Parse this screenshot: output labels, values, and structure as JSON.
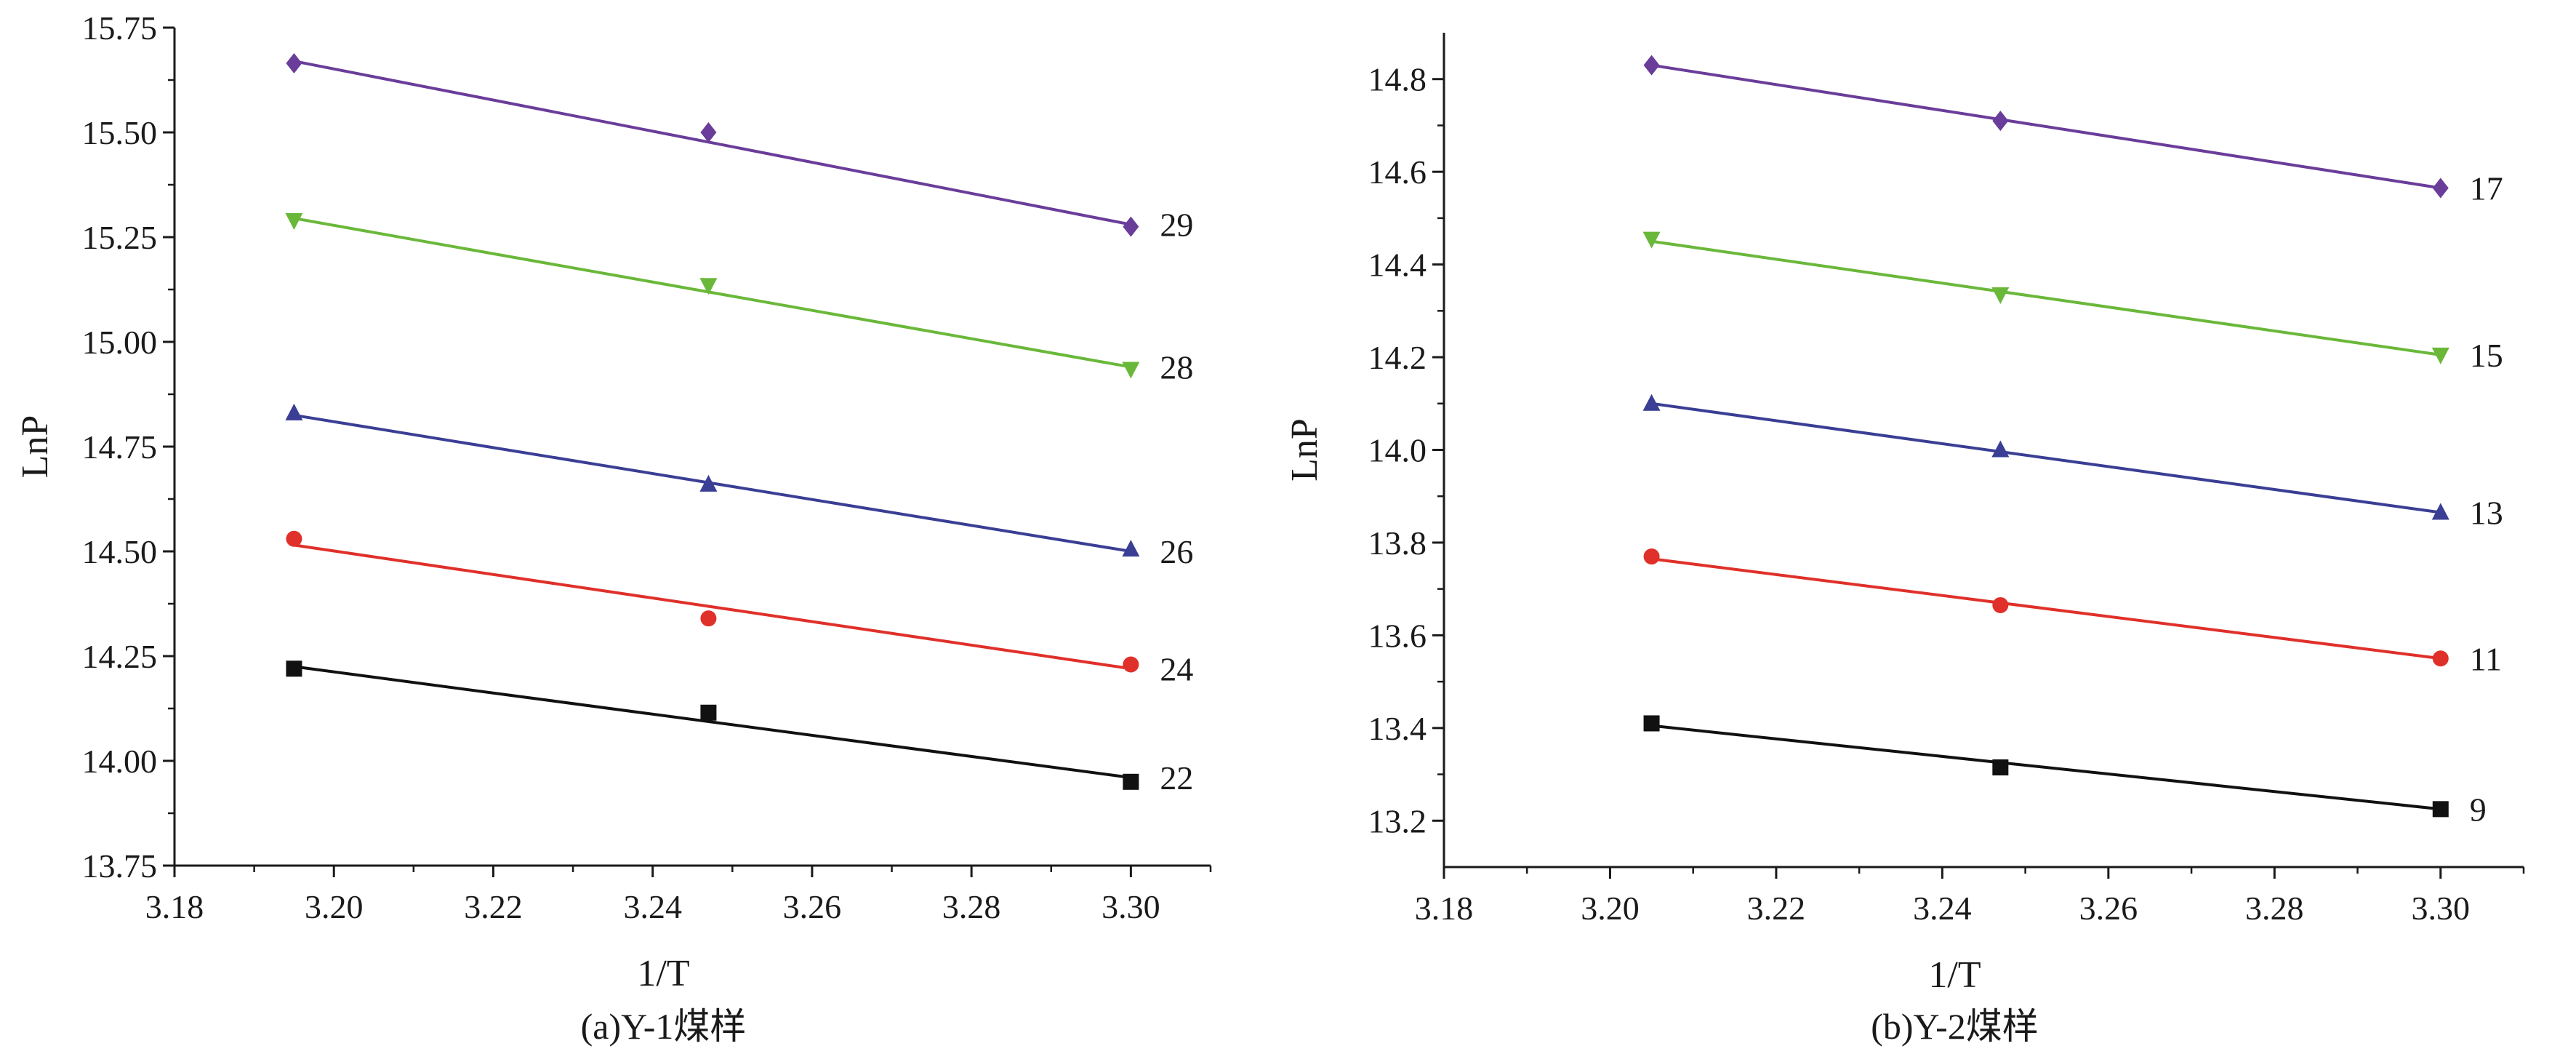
{
  "chart_data": [
    {
      "type": "scatter",
      "caption": "(a)Y-1煤样",
      "xlabel": "1/T",
      "ylabel": "LnP",
      "xlim": [
        3.18,
        3.31
      ],
      "ylim": [
        13.75,
        15.75
      ],
      "xticks": [
        "3.18",
        "3.20",
        "3.22",
        "3.24",
        "3.26",
        "3.28",
        "3.30"
      ],
      "yticks": [
        "13.75",
        "14.00",
        "14.25",
        "14.50",
        "14.75",
        "15.00",
        "15.25",
        "15.50",
        "15.75"
      ],
      "fit_lines": true,
      "series": [
        {
          "name": "22",
          "color": "#111111",
          "marker": "square",
          "x": [
            3.195,
            3.247,
            3.3
          ],
          "y": [
            14.22,
            14.115,
            13.95
          ],
          "fit": [
            [
              3.195,
              14.225
            ],
            [
              3.3,
              13.96
            ]
          ]
        },
        {
          "name": "24",
          "color": "#e0302a",
          "marker": "circle",
          "x": [
            3.195,
            3.247,
            3.3
          ],
          "y": [
            14.53,
            14.34,
            14.23
          ],
          "fit": [
            [
              3.195,
              14.515
            ],
            [
              3.3,
              14.22
            ]
          ]
        },
        {
          "name": "26",
          "color": "#3a3e94",
          "marker": "triangle-up",
          "x": [
            3.195,
            3.247,
            3.3
          ],
          "y": [
            14.83,
            14.66,
            14.505
          ],
          "fit": [
            [
              3.195,
              14.825
            ],
            [
              3.3,
              14.5
            ]
          ]
        },
        {
          "name": "28",
          "color": "#6ab83a",
          "marker": "triangle-down",
          "x": [
            3.195,
            3.247,
            3.3
          ],
          "y": [
            15.29,
            15.135,
            14.935
          ],
          "fit": [
            [
              3.195,
              15.295
            ],
            [
              3.3,
              14.94
            ]
          ]
        },
        {
          "name": "29",
          "color": "#6a3d9a",
          "marker": "diamond",
          "x": [
            3.195,
            3.247,
            3.3
          ],
          "y": [
            15.665,
            15.5,
            15.275
          ],
          "fit": [
            [
              3.195,
              15.67
            ],
            [
              3.3,
              15.28
            ]
          ]
        }
      ]
    },
    {
      "type": "scatter",
      "caption": "(b)Y-2煤样",
      "xlabel": "1/T",
      "ylabel": "LnP",
      "xlim": [
        3.18,
        3.31
      ],
      "ylim": [
        13.1,
        14.9
      ],
      "xticks": [
        "3.18",
        "3.20",
        "3.22",
        "3.24",
        "3.26",
        "3.28",
        "3.30"
      ],
      "yticks": [
        "13.2",
        "13.4",
        "13.6",
        "13.8",
        "14.0",
        "14.2",
        "14.4",
        "14.6",
        "14.8"
      ],
      "fit_lines": true,
      "series": [
        {
          "name": "9",
          "color": "#111111",
          "marker": "square",
          "x": [
            3.205,
            3.247,
            3.3
          ],
          "y": [
            13.41,
            13.315,
            13.225
          ],
          "fit": [
            [
              3.205,
              13.405
            ],
            [
              3.3,
              13.225
            ]
          ]
        },
        {
          "name": "11",
          "color": "#e0302a",
          "marker": "circle",
          "x": [
            3.205,
            3.247,
            3.3
          ],
          "y": [
            13.77,
            13.665,
            13.55
          ],
          "fit": [
            [
              3.205,
              13.765
            ],
            [
              3.3,
              13.55
            ]
          ]
        },
        {
          "name": "13",
          "color": "#3a3e94",
          "marker": "triangle-up",
          "x": [
            3.205,
            3.247,
            3.3
          ],
          "y": [
            14.1,
            14.0,
            13.865
          ],
          "fit": [
            [
              3.205,
              14.1
            ],
            [
              3.3,
              13.865
            ]
          ]
        },
        {
          "name": "15",
          "color": "#6ab83a",
          "marker": "triangle-down",
          "x": [
            3.205,
            3.247,
            3.3
          ],
          "y": [
            14.455,
            14.335,
            14.205
          ],
          "fit": [
            [
              3.205,
              14.45
            ],
            [
              3.3,
              14.205
            ]
          ]
        },
        {
          "name": "17",
          "color": "#6a3d9a",
          "marker": "diamond",
          "x": [
            3.205,
            3.247,
            3.3
          ],
          "y": [
            14.83,
            14.71,
            14.565
          ],
          "fit": [
            [
              3.205,
              14.83
            ],
            [
              3.3,
              14.565
            ]
          ]
        }
      ]
    }
  ]
}
